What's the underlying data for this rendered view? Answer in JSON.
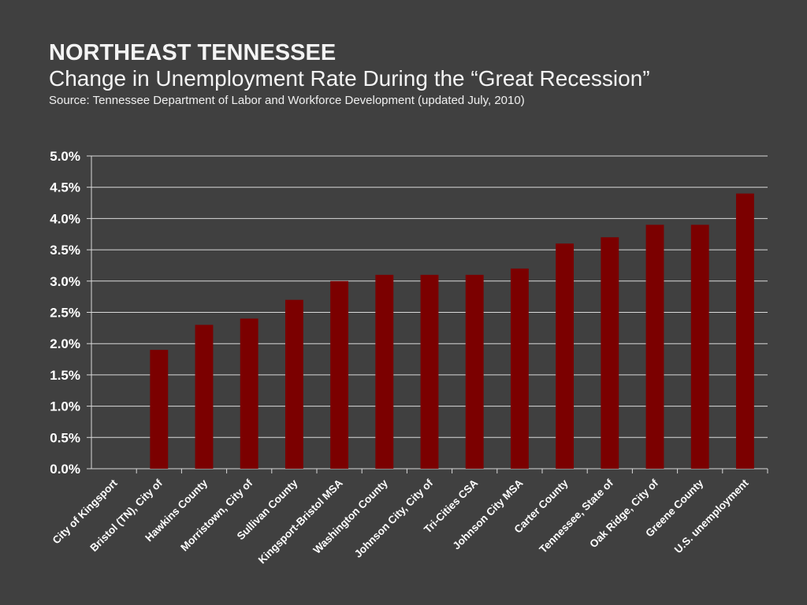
{
  "header": {
    "title": "NORTHEAST TENNESSEE",
    "subtitle": "Change in Unemployment Rate During the “Great Recession”",
    "source": "Source: Tennessee Department of Labor and Workforce Development (updated July, 2010)"
  },
  "colors": {
    "background": "#404040",
    "bar": "#7b0000",
    "grid": "#d9d9d9",
    "text": "#ffffff"
  },
  "chart_data": {
    "type": "bar",
    "categories": [
      "City of Kingsport",
      "Bristol (TN), City of",
      "Hawkins County",
      "Morristown, City of",
      "Sullivan County",
      "Kingsport-Bristol MSA",
      "Washington County",
      "Johnson City, City of",
      "Tri-Cities CSA",
      "Johnson City MSA",
      "Carter County",
      "Tennessee, State of",
      "Oak Ridge, City of",
      "Greene County",
      "U.S. unemployment"
    ],
    "values": [
      0.0,
      1.9,
      2.3,
      2.4,
      2.7,
      3.0,
      3.1,
      3.1,
      3.1,
      3.2,
      3.6,
      3.7,
      3.9,
      3.9,
      4.4
    ],
    "value_format": "percent",
    "yticks": [
      "0.0%",
      "0.5%",
      "1.0%",
      "1.5%",
      "2.0%",
      "2.5%",
      "3.0%",
      "3.5%",
      "4.0%",
      "4.5%",
      "5.0%"
    ],
    "ylim": [
      0,
      5
    ],
    "grid": true,
    "title": "",
    "xlabel": "",
    "ylabel": ""
  }
}
